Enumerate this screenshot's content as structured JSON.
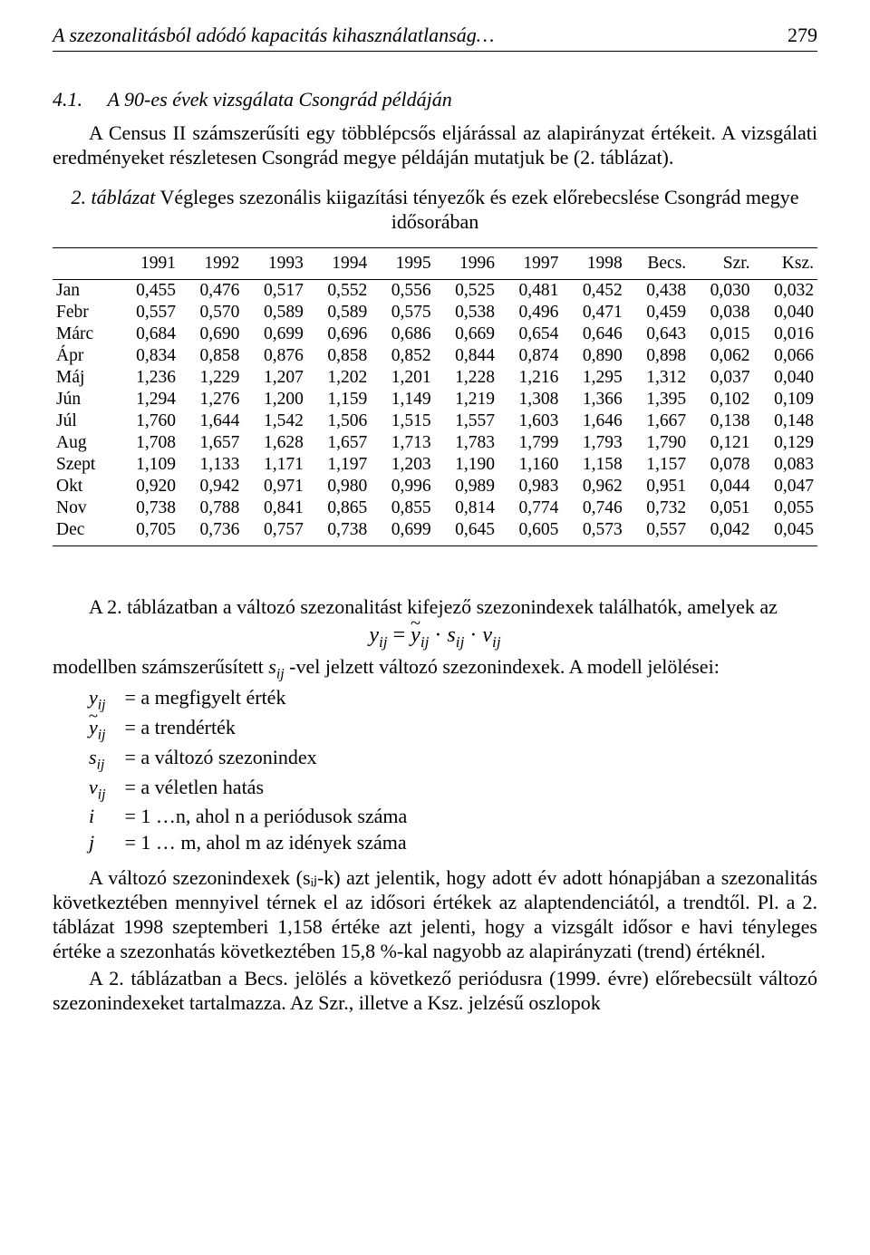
{
  "header": {
    "running_title": "A szezonalitásból adódó kapacitás kihasználatlanság…",
    "page_number": "279"
  },
  "section": {
    "number": "4.1.",
    "title": "A 90-es évek vizsgálata Csongrád példáján",
    "intro1": "A Census II számszerűsíti egy többlépcsős eljárással az alapirányzat értékeit. A vizsgálati eredményeket részletesen Csongrád megye példáján mutatjuk be (2. táblázat)."
  },
  "table": {
    "caption_label": "2. táblázat",
    "caption_text": "Végleges szezonális kiigazítási tényezők és ezek előrebecslése Csongrád megye idősorában",
    "columns": [
      "",
      "1991",
      "1992",
      "1993",
      "1994",
      "1995",
      "1996",
      "1997",
      "1998",
      "Becs.",
      "Szr.",
      "Ksz."
    ],
    "rows": [
      [
        "Jan",
        "0,455",
        "0,476",
        "0,517",
        "0,552",
        "0,556",
        "0,525",
        "0,481",
        "0,452",
        "0,438",
        "0,030",
        "0,032"
      ],
      [
        "Febr",
        "0,557",
        "0,570",
        "0,589",
        "0,589",
        "0,575",
        "0,538",
        "0,496",
        "0,471",
        "0,459",
        "0,038",
        "0,040"
      ],
      [
        "Márc",
        "0,684",
        "0,690",
        "0,699",
        "0,696",
        "0,686",
        "0,669",
        "0,654",
        "0,646",
        "0,643",
        "0,015",
        "0,016"
      ],
      [
        "Ápr",
        "0,834",
        "0,858",
        "0,876",
        "0,858",
        "0,852",
        "0,844",
        "0,874",
        "0,890",
        "0,898",
        "0,062",
        "0,066"
      ],
      [
        "Máj",
        "1,236",
        "1,229",
        "1,207",
        "1,202",
        "1,201",
        "1,228",
        "1,216",
        "1,295",
        "1,312",
        "0,037",
        "0,040"
      ],
      [
        "Jún",
        "1,294",
        "1,276",
        "1,200",
        "1,159",
        "1,149",
        "1,219",
        "1,308",
        "1,366",
        "1,395",
        "0,102",
        "0,109"
      ],
      [
        "Júl",
        "1,760",
        "1,644",
        "1,542",
        "1,506",
        "1,515",
        "1,557",
        "1,603",
        "1,646",
        "1,667",
        "0,138",
        "0,148"
      ],
      [
        "Aug",
        "1,708",
        "1,657",
        "1,628",
        "1,657",
        "1,713",
        "1,783",
        "1,799",
        "1,793",
        "1,790",
        "0,121",
        "0,129"
      ],
      [
        "Szept",
        "1,109",
        "1,133",
        "1,171",
        "1,197",
        "1,203",
        "1,190",
        "1,160",
        "1,158",
        "1,157",
        "0,078",
        "0,083"
      ],
      [
        "Okt",
        "0,920",
        "0,942",
        "0,971",
        "0,980",
        "0,996",
        "0,989",
        "0,983",
        "0,962",
        "0,951",
        "0,044",
        "0,047"
      ],
      [
        "Nov",
        "0,738",
        "0,788",
        "0,841",
        "0,865",
        "0,855",
        "0,814",
        "0,774",
        "0,746",
        "0,732",
        "0,051",
        "0,055"
      ],
      [
        "Dec",
        "0,705",
        "0,736",
        "0,757",
        "0,738",
        "0,699",
        "0,645",
        "0,605",
        "0,573",
        "0,557",
        "0,042",
        "0,045"
      ]
    ],
    "header_bg": "#ffffff",
    "border_color": "#000000",
    "font_size_pt": 15,
    "col_align": [
      "left",
      "right",
      "right",
      "right",
      "right",
      "right",
      "right",
      "right",
      "right",
      "right",
      "right",
      "right"
    ]
  },
  "body": {
    "p_after_table_a": "A 2. táblázatban a változó szezonalitást kifejező szezonindexek találhatók, amelyek az",
    "model_line": "modellben számszerűsített ",
    "model_line_mid": " -vel jelzett változó szezonindexek. A modell jelölései:",
    "def_y": " = a megfigyelt érték",
    "def_yt": " = a trendérték",
    "def_s": " = a változó szezonindex",
    "def_v": " = a véletlen hatás",
    "def_i": " = 1 …n, ahol n a periódusok száma",
    "def_j": " = 1 … m, ahol m az idények száma",
    "p_long": "A változó szezonindexek (sᵢⱼ-k) azt jelentik, hogy adott év adott hónapjában a szezonalitás következtében mennyivel térnek el az idősori értékek az alaptendenciától, a trendtől. Pl. a 2. táblázat 1998 szeptemberi 1,158 értéke azt jelenti, hogy a vizsgált idősor e havi tényleges értéke a szezonhatás következtében 15,8 %-kal nagyobb az alapirányzati (trend) értéknél.",
    "p_last": "A 2. táblázatban a Becs. jelölés a következő periódusra (1999. évre) előrebecsült változó szezonindexeket tartalmazza. Az Szr., illetve a Ksz. jelzésű oszlopok"
  },
  "formula": {
    "text_parts": [
      "y",
      "ij",
      " = ",
      "y",
      "ij",
      " · s",
      "ij",
      " · v",
      "ij"
    ],
    "font_size_pt": 18
  },
  "colors": {
    "text": "#000000",
    "background": "#ffffff"
  },
  "typography": {
    "body_font_size_pt": 17,
    "header_italic": true,
    "font_family": "Times New Roman"
  }
}
